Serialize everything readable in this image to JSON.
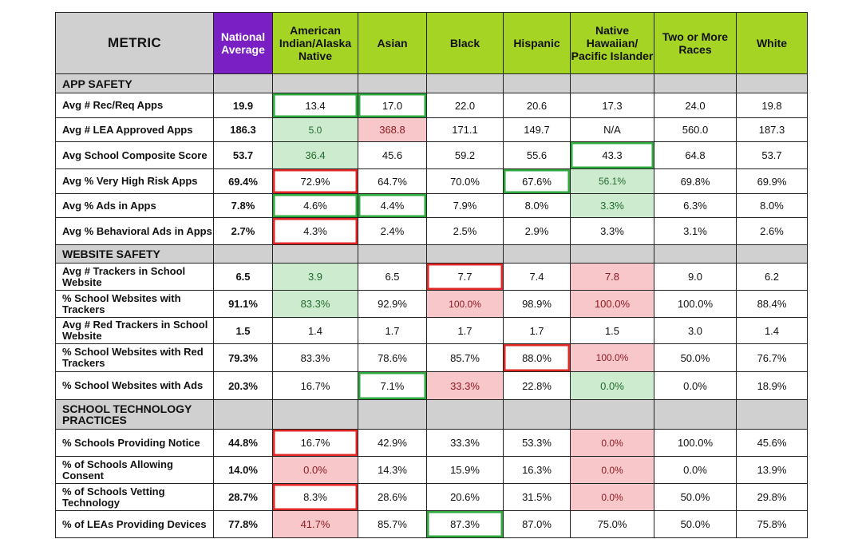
{
  "headers": [
    "METRIC",
    "National Average",
    "American Indian/Alaska Native",
    "Asian",
    "Black",
    "Hispanic",
    "Native Hawaiian/ Pacific Islander",
    "Two or More Races",
    "White"
  ],
  "sections": [
    {
      "title": "APP SAFETY",
      "rows": [
        {
          "label": "Avg # Rec/Req Apps",
          "values": [
            "19.9",
            "13.4",
            "17.0",
            "22.0",
            "20.6",
            "17.3",
            "24.0",
            "19.8"
          ]
        },
        {
          "label": "Avg # LEA Approved Apps",
          "values": [
            "186.3",
            "5.0",
            "368.8",
            "171.1",
            "149.7",
            "N/A",
            "560.0",
            "187.3"
          ]
        },
        {
          "label": "Avg School Composite Score",
          "values": [
            "53.7",
            "36.4",
            "45.6",
            "59.2",
            "55.6",
            "43.3",
            "64.8",
            "53.7"
          ]
        },
        {
          "label": "Avg % Very High Risk Apps",
          "values": [
            "69.4%",
            "72.9%",
            "64.7%",
            "70.0%",
            "67.6%",
            "56.1%",
            "69.8%",
            "69.9%"
          ]
        },
        {
          "label": "Avg % Ads in Apps",
          "values": [
            "7.8%",
            "4.6%",
            "4.4%",
            "7.9%",
            "8.0%",
            "3.3%",
            "6.3%",
            "8.0%"
          ]
        },
        {
          "label": "Avg % Behavioral Ads in Apps",
          "values": [
            "2.7%",
            "4.3%",
            "2.4%",
            "2.5%",
            "2.9%",
            "3.3%",
            "3.1%",
            "2.6%"
          ]
        }
      ]
    },
    {
      "title": "WEBSITE SAFETY",
      "rows": [
        {
          "label": "Avg # Trackers in School Website",
          "values": [
            "6.5",
            "3.9",
            "6.5",
            "7.7",
            "7.4",
            "7.8",
            "9.0",
            "6.2"
          ]
        },
        {
          "label": "% School Websites with Trackers",
          "values": [
            "91.1%",
            "83.3%",
            "92.9%",
            "100.0%",
            "98.9%",
            "100.0%",
            "100.0%",
            "88.4%"
          ]
        },
        {
          "label": "Avg # Red Trackers in School Website",
          "values": [
            "1.5",
            "1.4",
            "1.7",
            "1.7",
            "1.7",
            "1.5",
            "3.0",
            "1.4"
          ]
        },
        {
          "label": "% School Websites with Red Trackers",
          "values": [
            "79.3%",
            "83.3%",
            "78.6%",
            "85.7%",
            "88.0%",
            "100.0%",
            "50.0%",
            "76.7%"
          ]
        },
        {
          "label": "% School Websites with Ads",
          "values": [
            "20.3%",
            "16.7%",
            "7.1%",
            "33.3%",
            "22.8%",
            "0.0%",
            "0.0%",
            "18.9%"
          ]
        }
      ]
    },
    {
      "title": "SCHOOL TECHNOLOGY PRACTICES",
      "rows": [
        {
          "label": "% Schools Providing Notice",
          "values": [
            "44.8%",
            "16.7%",
            "42.9%",
            "33.3%",
            "53.3%",
            "0.0%",
            "100.0%",
            "45.6%"
          ]
        },
        {
          "label": "% of Schools Allowing Consent",
          "values": [
            "14.0%",
            "0.0%",
            "14.3%",
            "15.9%",
            "16.3%",
            "0.0%",
            "0.0%",
            "13.9%"
          ]
        },
        {
          "label": "% of Schools Vetting Technology",
          "values": [
            "28.7%",
            "8.3%",
            "28.6%",
            "20.6%",
            "31.5%",
            "0.0%",
            "50.0%",
            "29.8%"
          ]
        },
        {
          "label": "% of LEAs Providing Devices",
          "values": [
            "77.8%",
            "41.7%",
            "85.7%",
            "87.3%",
            "87.0%",
            "75.0%",
            "50.0%",
            "75.8%"
          ]
        }
      ]
    }
  ]
}
